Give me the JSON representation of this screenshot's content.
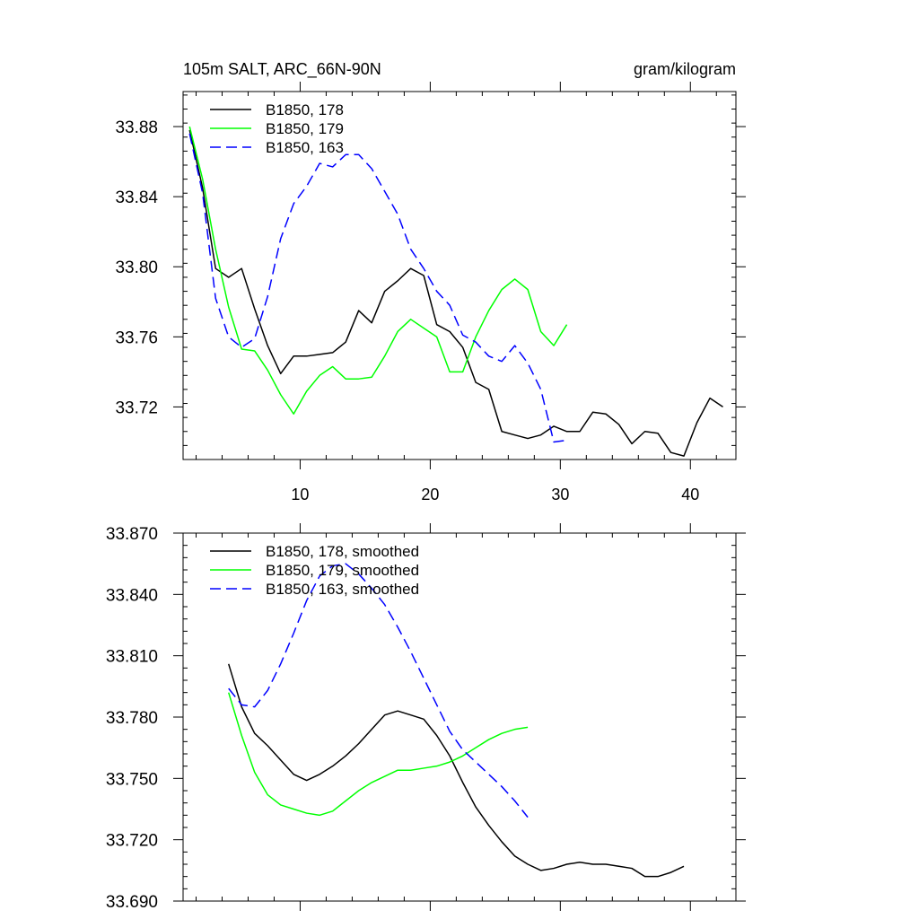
{
  "chart_data": [
    {
      "type": "line",
      "title_left": "105m SALT, ARC_66N-90N",
      "title_right": "gram/kilogram",
      "xlabel": "",
      "ylabel": "",
      "xlim": [
        1,
        43.5
      ],
      "ylim": [
        33.69,
        33.9
      ],
      "xticks": [
        10,
        20,
        30,
        40
      ],
      "xtick_labels": [
        "10",
        "20",
        "30",
        "40"
      ],
      "yticks": [
        33.72,
        33.76,
        33.8,
        33.84,
        33.88
      ],
      "ytick_labels": [
        "33.72",
        "33.76",
        "33.80",
        "33.84",
        "33.88"
      ],
      "legend_position": "top-left",
      "series": [
        {
          "name": "B1850, 178",
          "color": "#000000",
          "dash": "solid",
          "x": [
            1.5,
            2.5,
            3.5,
            4.5,
            5.5,
            6.5,
            7.5,
            8.5,
            9.5,
            10.5,
            11.5,
            12.5,
            13.5,
            14.5,
            15.5,
            16.5,
            17.5,
            18.5,
            19.5,
            20.5,
            21.5,
            22.5,
            23.5,
            24.5,
            25.5,
            26.5,
            27.5,
            28.5,
            29.5,
            30.5,
            31.5,
            32.5,
            33.5,
            34.5,
            35.5,
            36.5,
            37.5,
            38.5,
            39.5,
            40.5,
            41.5,
            42.5
          ],
          "y": [
            33.878,
            33.845,
            33.799,
            33.794,
            33.799,
            33.776,
            33.755,
            33.739,
            33.749,
            33.749,
            33.75,
            33.751,
            33.757,
            33.775,
            33.768,
            33.786,
            33.792,
            33.799,
            33.795,
            33.767,
            33.763,
            33.754,
            33.734,
            33.73,
            33.706,
            33.704,
            33.702,
            33.704,
            33.709,
            33.706,
            33.706,
            33.717,
            33.716,
            33.71,
            33.699,
            33.706,
            33.705,
            33.694,
            33.692,
            33.711,
            33.725,
            33.72
          ]
        },
        {
          "name": "B1850, 179",
          "color": "#00ff00",
          "dash": "solid",
          "x": [
            1.5,
            2.5,
            3.5,
            4.5,
            5.5,
            6.5,
            7.5,
            8.5,
            9.5,
            10.5,
            11.5,
            12.5,
            13.5,
            14.5,
            15.5,
            16.5,
            17.5,
            18.5,
            19.5,
            20.5,
            21.5,
            22.5,
            23.5,
            24.5,
            25.5,
            26.5,
            27.5,
            28.5,
            29.5,
            30.5
          ],
          "y": [
            33.88,
            33.85,
            33.81,
            33.777,
            33.753,
            33.752,
            33.741,
            33.727,
            33.716,
            33.729,
            33.738,
            33.743,
            33.736,
            33.736,
            33.737,
            33.749,
            33.763,
            33.77,
            33.765,
            33.76,
            33.74,
            33.74,
            33.76,
            33.775,
            33.787,
            33.793,
            33.787,
            33.763,
            33.755,
            33.767
          ]
        },
        {
          "name": "B1850, 163",
          "color": "#0000ff",
          "dash": "dashed",
          "x": [
            1.5,
            2.5,
            3.5,
            4.5,
            5.5,
            6.5,
            7.5,
            8.5,
            9.5,
            10.5,
            11.5,
            12.5,
            13.5,
            14.5,
            15.5,
            16.5,
            17.5,
            18.5,
            19.5,
            20.5,
            21.5,
            22.5,
            23.5,
            24.5,
            25.5,
            26.5,
            27.5,
            28.5,
            29.5,
            30.5
          ],
          "y": [
            33.876,
            33.842,
            33.782,
            33.76,
            33.754,
            33.759,
            33.783,
            33.816,
            33.836,
            33.846,
            33.859,
            33.857,
            33.864,
            33.864,
            33.856,
            33.843,
            33.83,
            33.81,
            33.799,
            33.786,
            33.778,
            33.761,
            33.757,
            33.749,
            33.746,
            33.755,
            33.745,
            33.73,
            33.7,
            33.701
          ]
        }
      ]
    },
    {
      "type": "line",
      "xlabel": "",
      "ylabel": "",
      "xlim": [
        1,
        43.5
      ],
      "ylim": [
        33.69,
        33.87
      ],
      "xticks": [
        10,
        20,
        30,
        40
      ],
      "yticks": [
        33.69,
        33.72,
        33.75,
        33.78,
        33.81,
        33.84,
        33.87
      ],
      "ytick_labels": [
        "33.690",
        "33.720",
        "33.750",
        "33.780",
        "33.810",
        "33.840",
        "33.870"
      ],
      "legend_position": "top-left",
      "series": [
        {
          "name": "B1850, 178, smoothed",
          "color": "#000000",
          "dash": "solid",
          "x": [
            4.5,
            5.5,
            6.5,
            7.5,
            8.5,
            9.5,
            10.5,
            11.5,
            12.5,
            13.5,
            14.5,
            15.5,
            16.5,
            17.5,
            18.5,
            19.5,
            20.5,
            21.5,
            22.5,
            23.5,
            24.5,
            25.5,
            26.5,
            27.5,
            28.5,
            29.5,
            30.5,
            31.5,
            32.5,
            33.5,
            34.5,
            35.5,
            36.5,
            37.5,
            38.5,
            39.5
          ],
          "y": [
            33.806,
            33.785,
            33.772,
            33.766,
            33.759,
            33.752,
            33.749,
            33.752,
            33.756,
            33.761,
            33.767,
            33.774,
            33.781,
            33.783,
            33.781,
            33.779,
            33.771,
            33.761,
            33.748,
            33.736,
            33.727,
            33.719,
            33.712,
            33.708,
            33.705,
            33.706,
            33.708,
            33.709,
            33.708,
            33.708,
            33.707,
            33.706,
            33.702,
            33.702,
            33.704,
            33.707
          ]
        },
        {
          "name": "B1850, 179, smoothed",
          "color": "#00ff00",
          "dash": "solid",
          "x": [
            4.5,
            5.5,
            6.5,
            7.5,
            8.5,
            9.5,
            10.5,
            11.5,
            12.5,
            13.5,
            14.5,
            15.5,
            16.5,
            17.5,
            18.5,
            19.5,
            20.5,
            21.5,
            22.5,
            23.5,
            24.5,
            25.5,
            26.5,
            27.5
          ],
          "y": [
            33.792,
            33.771,
            33.753,
            33.742,
            33.737,
            33.735,
            33.733,
            33.732,
            33.734,
            33.739,
            33.744,
            33.748,
            33.751,
            33.754,
            33.754,
            33.755,
            33.756,
            33.758,
            33.761,
            33.765,
            33.769,
            33.772,
            33.774,
            33.775
          ]
        },
        {
          "name": "B1850, 163, smoothed",
          "color": "#0000ff",
          "dash": "dashed",
          "x": [
            4.5,
            5.5,
            6.5,
            7.5,
            8.5,
            9.5,
            10.5,
            11.5,
            12.5,
            13.5,
            14.5,
            15.5,
            16.5,
            17.5,
            18.5,
            19.5,
            20.5,
            21.5,
            22.5,
            23.5,
            24.5,
            25.5,
            26.5,
            27.5
          ],
          "y": [
            33.794,
            33.786,
            33.785,
            33.793,
            33.806,
            33.821,
            33.837,
            33.849,
            33.854,
            33.855,
            33.85,
            33.843,
            33.835,
            33.824,
            33.812,
            33.799,
            33.786,
            33.773,
            33.764,
            33.758,
            33.752,
            33.746,
            33.739,
            33.731
          ]
        }
      ]
    }
  ]
}
